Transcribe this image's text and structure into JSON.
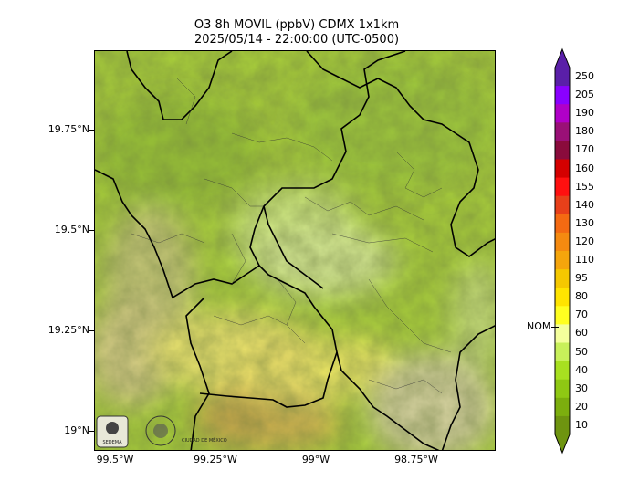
{
  "title_line1": "O3 8h MOVIL (ppbV) CDMX 1x1km",
  "title_line2": "2025/05/14 - 22:00:00 (UTC-0500)",
  "y_labels": [
    "19.75°N",
    "19.5°N",
    "19.25°N",
    "19°N"
  ],
  "x_labels": [
    "99.5°W",
    "99.25°W",
    "99°W",
    "98.75°W"
  ],
  "colorbar": {
    "labels": [
      "250",
      "205",
      "190",
      "180",
      "170",
      "160",
      "155",
      "140",
      "130",
      "120",
      "110",
      "95",
      "80",
      "70",
      "60",
      "50",
      "40",
      "30",
      "20",
      "10"
    ],
    "colors": [
      "#5a1fa8",
      "#8a00ff",
      "#b000c8",
      "#9a1077",
      "#8a0b3c",
      "#d40000",
      "#ff1010",
      "#e8401a",
      "#f46a12",
      "#f58a10",
      "#f5a50c",
      "#f5c800",
      "#ffe400",
      "#ffff20",
      "#f4ff9c",
      "#c8f05a",
      "#a8e020",
      "#8fc813",
      "#7cae0e",
      "#6e9410"
    ],
    "nom_label": "NOM",
    "nom_value": 65
  },
  "logos": {
    "logo1_text": "SEDEMA",
    "logo2_text": "CIUDAD DE MÉXICO"
  }
}
